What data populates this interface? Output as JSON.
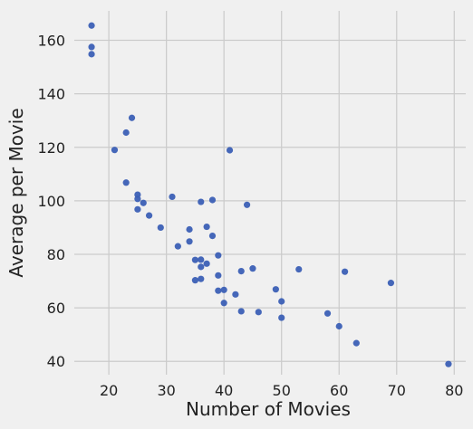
{
  "chart_data": {
    "type": "scatter",
    "title": "",
    "xlabel": "Number of Movies",
    "ylabel": "Average per Movie",
    "xlim": [
      14,
      82
    ],
    "ylim": [
      35,
      171
    ],
    "xticks": [
      20,
      30,
      40,
      50,
      60,
      70,
      80
    ],
    "yticks": [
      40,
      60,
      80,
      100,
      120,
      140,
      160
    ],
    "grid": true,
    "marker_color": "#3b5fb5",
    "background_color": "#f0f0f0",
    "points": [
      [
        17,
        165.5
      ],
      [
        17,
        157.5
      ],
      [
        17,
        154.8
      ],
      [
        21,
        119.0
      ],
      [
        23,
        125.5
      ],
      [
        23,
        106.8
      ],
      [
        24,
        131.0
      ],
      [
        25,
        102.3
      ],
      [
        25,
        100.7
      ],
      [
        25,
        96.8
      ],
      [
        26,
        99.2
      ],
      [
        27,
        94.5
      ],
      [
        29,
        90.0
      ],
      [
        31,
        101.5
      ],
      [
        32,
        83.0
      ],
      [
        34,
        89.3
      ],
      [
        34,
        84.8
      ],
      [
        35,
        77.9
      ],
      [
        35,
        70.3
      ],
      [
        36,
        99.6
      ],
      [
        36,
        78.0
      ],
      [
        36,
        75.3
      ],
      [
        36,
        70.8
      ],
      [
        37,
        90.3
      ],
      [
        37,
        76.5
      ],
      [
        38,
        100.3
      ],
      [
        38,
        86.9
      ],
      [
        39,
        79.6
      ],
      [
        39,
        72.1
      ],
      [
        39,
        66.4
      ],
      [
        40,
        66.7
      ],
      [
        40,
        61.8
      ],
      [
        41,
        118.9
      ],
      [
        42,
        65.0
      ],
      [
        43,
        73.7
      ],
      [
        43,
        58.7
      ],
      [
        44,
        98.5
      ],
      [
        45,
        74.7
      ],
      [
        46,
        58.4
      ],
      [
        49,
        66.9
      ],
      [
        50,
        62.4
      ],
      [
        50,
        56.3
      ],
      [
        53,
        74.4
      ],
      [
        58,
        57.9
      ],
      [
        60,
        53.1
      ],
      [
        61,
        73.5
      ],
      [
        63,
        46.8
      ],
      [
        69,
        69.3
      ],
      [
        79,
        39.0
      ]
    ]
  }
}
